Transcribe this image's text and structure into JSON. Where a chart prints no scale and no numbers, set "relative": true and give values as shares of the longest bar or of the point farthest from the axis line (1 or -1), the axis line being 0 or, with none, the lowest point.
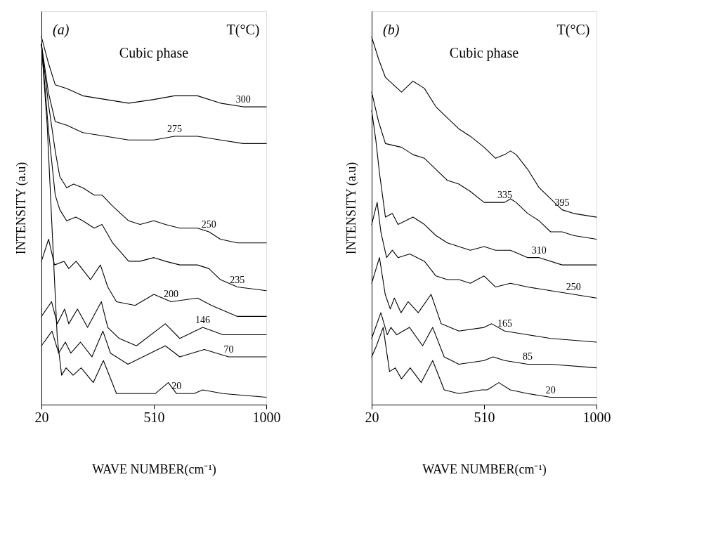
{
  "chart_data": [
    {
      "type": "line",
      "relative": true,
      "xlabel": "WAVE NUMBER(cm⁻¹)",
      "ylabel": "INTENSITY (a.u)",
      "xlim": [
        20,
        1000
      ],
      "xticks": [
        20,
        510,
        1000
      ],
      "grid": false,
      "legend": false,
      "line_style": "solid",
      "annotations": [
        "(a)",
        "Cubic phase",
        "T(°C)"
      ],
      "series": [
        {
          "name": "300",
          "color": "#000000",
          "x": [
            20,
            50,
            80,
            130,
            200,
            300,
            400,
            510,
            600,
            700,
            800,
            900,
            1000
          ],
          "values": [
            1.0,
            0.93,
            0.87,
            0.86,
            0.84,
            0.83,
            0.82,
            0.83,
            0.84,
            0.84,
            0.82,
            0.81,
            0.81
          ]
        },
        {
          "name": "275",
          "color": "#000000",
          "x": [
            20,
            50,
            80,
            130,
            200,
            300,
            400,
            510,
            600,
            700,
            800,
            900,
            1000
          ],
          "values": [
            0.98,
            0.85,
            0.77,
            0.76,
            0.74,
            0.73,
            0.72,
            0.72,
            0.73,
            0.73,
            0.72,
            0.71,
            0.71
          ]
        },
        {
          "name": "250",
          "color": "#000000",
          "x": [
            20,
            50,
            80,
            100,
            130,
            160,
            200,
            250,
            284,
            330,
            400,
            450,
            510,
            560,
            623,
            700,
            750,
            800,
            874,
            1000
          ],
          "values": [
            0.98,
            0.82,
            0.69,
            0.62,
            0.59,
            0.6,
            0.59,
            0.57,
            0.57,
            0.54,
            0.5,
            0.49,
            0.5,
            0.49,
            0.48,
            0.48,
            0.47,
            0.45,
            0.44,
            0.44
          ]
        },
        {
          "name": "235",
          "color": "#000000",
          "x": [
            20,
            50,
            80,
            100,
            130,
            170,
            200,
            250,
            284,
            330,
            400,
            450,
            510,
            560,
            623,
            700,
            750,
            800,
            874,
            1000
          ],
          "values": [
            0.98,
            0.75,
            0.57,
            0.53,
            0.5,
            0.51,
            0.5,
            0.48,
            0.49,
            0.44,
            0.39,
            0.39,
            0.4,
            0.39,
            0.38,
            0.38,
            0.37,
            0.34,
            0.32,
            0.31
          ]
        },
        {
          "name": "200",
          "color": "#000000",
          "x": [
            20,
            51,
            77,
            118,
            139,
            171,
            234,
            277,
            309,
            347,
            428,
            510,
            585,
            700,
            761,
            874,
            1000
          ],
          "values": [
            0.39,
            0.45,
            0.38,
            0.39,
            0.37,
            0.39,
            0.34,
            0.38,
            0.32,
            0.28,
            0.27,
            0.3,
            0.28,
            0.29,
            0.27,
            0.24,
            0.24
          ]
        },
        {
          "name": "146",
          "color": "#000000",
          "x": [
            20,
            64,
            89,
            121,
            139,
            177,
            221,
            281,
            309,
            359,
            434,
            560,
            623,
            723,
            811,
            1000
          ],
          "values": [
            0.24,
            0.28,
            0.22,
            0.26,
            0.22,
            0.26,
            0.21,
            0.28,
            0.21,
            0.18,
            0.16,
            0.22,
            0.18,
            0.21,
            0.19,
            0.19
          ]
        },
        {
          "name": "70",
          "color": "#000000",
          "x": [
            20,
            66,
            95,
            124,
            148,
            190,
            240,
            288,
            321,
            397,
            560,
            623,
            730,
            836,
            1000
          ],
          "values": [
            0.16,
            0.2,
            0.14,
            0.17,
            0.14,
            0.17,
            0.13,
            0.2,
            0.14,
            0.11,
            0.16,
            0.13,
            0.15,
            0.13,
            0.13
          ]
        },
        {
          "name": "20",
          "color": "#000000",
          "x": [
            20,
            45,
            70,
            89,
            108,
            127,
            158,
            193,
            246,
            290,
            347,
            409,
            472,
            516,
            573,
            609,
            685,
            723,
            811,
            1000
          ],
          "values": [
            0.98,
            0.76,
            0.43,
            0.18,
            0.08,
            0.1,
            0.08,
            0.1,
            0.06,
            0.12,
            0.03,
            0.03,
            0.03,
            0.03,
            0.06,
            0.03,
            0.03,
            0.04,
            0.03,
            0.02
          ]
        }
      ]
    },
    {
      "type": "line",
      "relative": true,
      "xlabel": "WAVE NUMBER(cm⁻¹)",
      "ylabel": "INTENSITY (a.u)",
      "xlim": [
        20,
        1000
      ],
      "xticks": [
        20,
        510,
        1000
      ],
      "grid": false,
      "legend": false,
      "line_style": "solid",
      "annotations": [
        "(b)",
        "Cubic phase",
        "T(°C)"
      ],
      "series": [
        {
          "name": "395",
          "color": "#000000",
          "x": [
            20,
            50,
            80,
            150,
            200,
            250,
            300,
            350,
            400,
            450,
            510,
            560,
            600,
            625,
            650,
            700,
            750,
            800,
            850,
            900,
            1000
          ],
          "values": [
            1.0,
            0.94,
            0.89,
            0.85,
            0.88,
            0.86,
            0.81,
            0.78,
            0.75,
            0.73,
            0.7,
            0.67,
            0.68,
            0.69,
            0.68,
            0.64,
            0.59,
            0.56,
            0.53,
            0.52,
            0.51
          ]
        },
        {
          "name": "335",
          "color": "#000000",
          "x": [
            20,
            50,
            80,
            150,
            200,
            250,
            300,
            350,
            400,
            450,
            510,
            560,
            600,
            625,
            650,
            700,
            750,
            800,
            850,
            900,
            1000
          ],
          "values": [
            0.85,
            0.77,
            0.71,
            0.7,
            0.68,
            0.67,
            0.64,
            0.61,
            0.6,
            0.58,
            0.55,
            0.55,
            0.55,
            0.56,
            0.55,
            0.52,
            0.5,
            0.47,
            0.47,
            0.46,
            0.45
          ]
        },
        {
          "name": "310",
          "color": "#000000",
          "x": [
            20,
            38,
            54,
            80,
            110,
            135,
            200,
            250,
            300,
            350,
            400,
            450,
            510,
            560,
            625,
            700,
            750,
            850,
            1000
          ],
          "values": [
            0.8,
            0.72,
            0.63,
            0.51,
            0.52,
            0.49,
            0.51,
            0.49,
            0.46,
            0.44,
            0.43,
            0.42,
            0.43,
            0.42,
            0.42,
            0.4,
            0.4,
            0.38,
            0.38
          ]
        },
        {
          "name": "250",
          "color": "#000000",
          "x": [
            20,
            44,
            60,
            85,
            110,
            135,
            186,
            250,
            300,
            350,
            400,
            450,
            510,
            560,
            625,
            700,
            800,
            900,
            1000
          ],
          "values": [
            0.49,
            0.55,
            0.47,
            0.4,
            0.42,
            0.4,
            0.41,
            0.39,
            0.35,
            0.34,
            0.34,
            0.33,
            0.35,
            0.32,
            0.33,
            0.32,
            0.31,
            0.3,
            0.29
          ]
        },
        {
          "name": "165",
          "color": "#000000",
          "x": [
            20,
            54,
            79,
            101,
            119,
            148,
            179,
            223,
            279,
            323,
            400,
            510,
            543,
            600,
            700,
            800,
            1000
          ],
          "values": [
            0.33,
            0.4,
            0.3,
            0.26,
            0.29,
            0.25,
            0.28,
            0.25,
            0.3,
            0.22,
            0.2,
            0.21,
            0.22,
            0.2,
            0.19,
            0.18,
            0.17
          ]
        },
        {
          "name": "85",
          "color": "#000000",
          "x": [
            20,
            60,
            88,
            104,
            129,
            185,
            242,
            286,
            336,
            400,
            510,
            549,
            600,
            700,
            800,
            1000
          ],
          "values": [
            0.18,
            0.25,
            0.19,
            0.21,
            0.19,
            0.21,
            0.16,
            0.21,
            0.13,
            0.11,
            0.12,
            0.13,
            0.12,
            0.11,
            0.11,
            0.1
          ]
        },
        {
          "name": "20",
          "color": "#000000",
          "x": [
            20,
            41,
            70,
            98,
            123,
            150,
            188,
            236,
            286,
            336,
            400,
            499,
            524,
            574,
            624,
            700,
            800,
            1000
          ],
          "values": [
            0.13,
            0.16,
            0.21,
            0.09,
            0.1,
            0.07,
            0.1,
            0.06,
            0.12,
            0.04,
            0.03,
            0.04,
            0.04,
            0.06,
            0.04,
            0.03,
            0.02,
            0.02
          ]
        }
      ]
    }
  ]
}
